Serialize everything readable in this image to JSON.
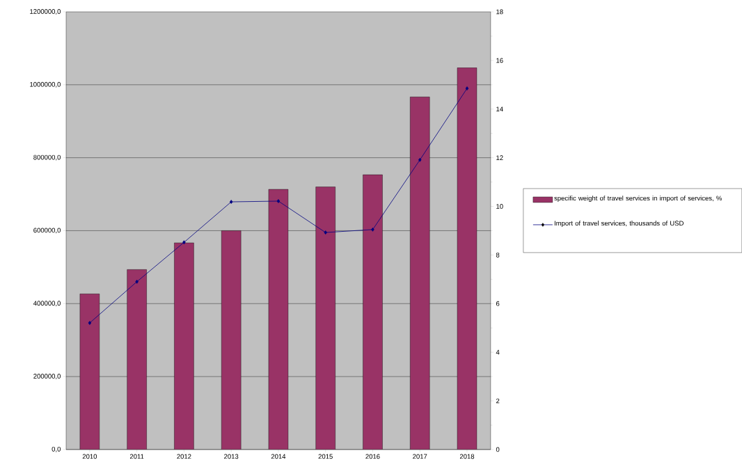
{
  "chart_data": {
    "type": "bar",
    "categories": [
      "2010",
      "2011",
      "2012",
      "2013",
      "2014",
      "2015",
      "2016",
      "2017",
      "2018"
    ],
    "series": [
      {
        "name": "specific weight of travel services in import of services, %",
        "axis": "y2",
        "color": "#993366",
        "values": [
          6.4,
          7.4,
          8.5,
          9.0,
          10.7,
          10.8,
          11.3,
          14.5,
          15.7
        ]
      },
      {
        "name": "Import of travel services,  thousands of USD",
        "type": "line",
        "axis": "y",
        "color": "#000080",
        "marker": "diamond",
        "values": [
          347000,
          460000,
          568000,
          679000,
          681000,
          595000,
          603000,
          794000,
          990000
        ]
      }
    ],
    "ylim": [
      0,
      1200000
    ],
    "yticks": [
      {
        "value": 0,
        "label": "0,0"
      },
      {
        "value": 200000,
        "label": "200000,0"
      },
      {
        "value": 400000,
        "label": "400000,0"
      },
      {
        "value": 600000,
        "label": "600000,0"
      },
      {
        "value": 800000,
        "label": "800000,0"
      },
      {
        "value": 1000000,
        "label": "1000000,0"
      },
      {
        "value": 1200000,
        "label": "1200000,0"
      }
    ],
    "y2lim": [
      0,
      18
    ],
    "y2ticks": [
      0,
      2,
      4,
      6,
      8,
      10,
      12,
      14,
      16,
      18
    ],
    "grid": "y",
    "legend": "right"
  }
}
